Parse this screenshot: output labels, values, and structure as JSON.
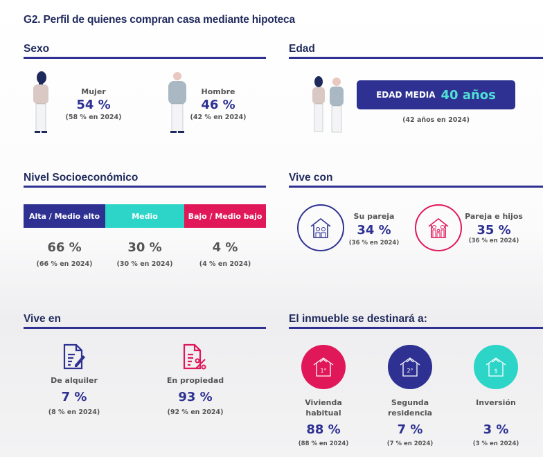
{
  "title": "G2. Perfil de quienes compran casa mediante hipoteca",
  "colors": {
    "blue": "#2e3192",
    "pink": "#e0185a",
    "teal": "#2dd5c8",
    "navy": "#1f2a5c"
  },
  "sexo": {
    "heading": "Sexo",
    "mujer": {
      "label": "Mujer",
      "value": "54 %",
      "prev": "(58 % en 2024)"
    },
    "hombre": {
      "label": "Hombre",
      "value": "46 %",
      "prev": "(42 % en 2024)"
    }
  },
  "edad": {
    "heading": "Edad",
    "label": "EDAD MEDIA",
    "value": "40 años",
    "prev": "(42 años en 2024)"
  },
  "nse": {
    "heading": "Nivel Socioeconómico",
    "items": [
      {
        "label": "Alta / Medio alto",
        "value": "66 %",
        "prev": "(66 % en 2024)"
      },
      {
        "label": "Medio",
        "value": "30 %",
        "prev": "(30 % en 2024)"
      },
      {
        "label": "Bajo / Medio bajo",
        "value": "4 %",
        "prev": "(4 % en 2024)"
      }
    ]
  },
  "vive_con": {
    "heading": "Vive con",
    "items": [
      {
        "label": "Su pareja",
        "value": "34 %",
        "prev": "(36 % en 2024)",
        "icon": "house-couple-icon"
      },
      {
        "label": "Pareja e hijos",
        "value": "35 %",
        "prev": "(36 % en 2024)",
        "icon": "house-family-icon"
      }
    ]
  },
  "vive_en": {
    "heading": "Vive en",
    "items": [
      {
        "label": "De alquiler",
        "value": "7 %",
        "prev": "(8 % en 2024)",
        "icon": "document-edit-icon"
      },
      {
        "label": "En propiedad",
        "value": "93 %",
        "prev": "(92 % en 2024)",
        "icon": "document-percent-icon"
      }
    ]
  },
  "destino": {
    "heading": "El inmueble se destinará a:",
    "items": [
      {
        "label1": "Vivienda",
        "label2": "habitual",
        "value": "88 %",
        "prev": "(88 % en 2024)",
        "badge": "1°"
      },
      {
        "label1": "Segunda",
        "label2": "residencia",
        "value": "7 %",
        "prev": "(7 % en 2024)",
        "badge": "2°"
      },
      {
        "label1": "Inversión",
        "label2": "",
        "value": "3 %",
        "prev": "(3 % en 2024)",
        "badge": "$"
      }
    ]
  }
}
